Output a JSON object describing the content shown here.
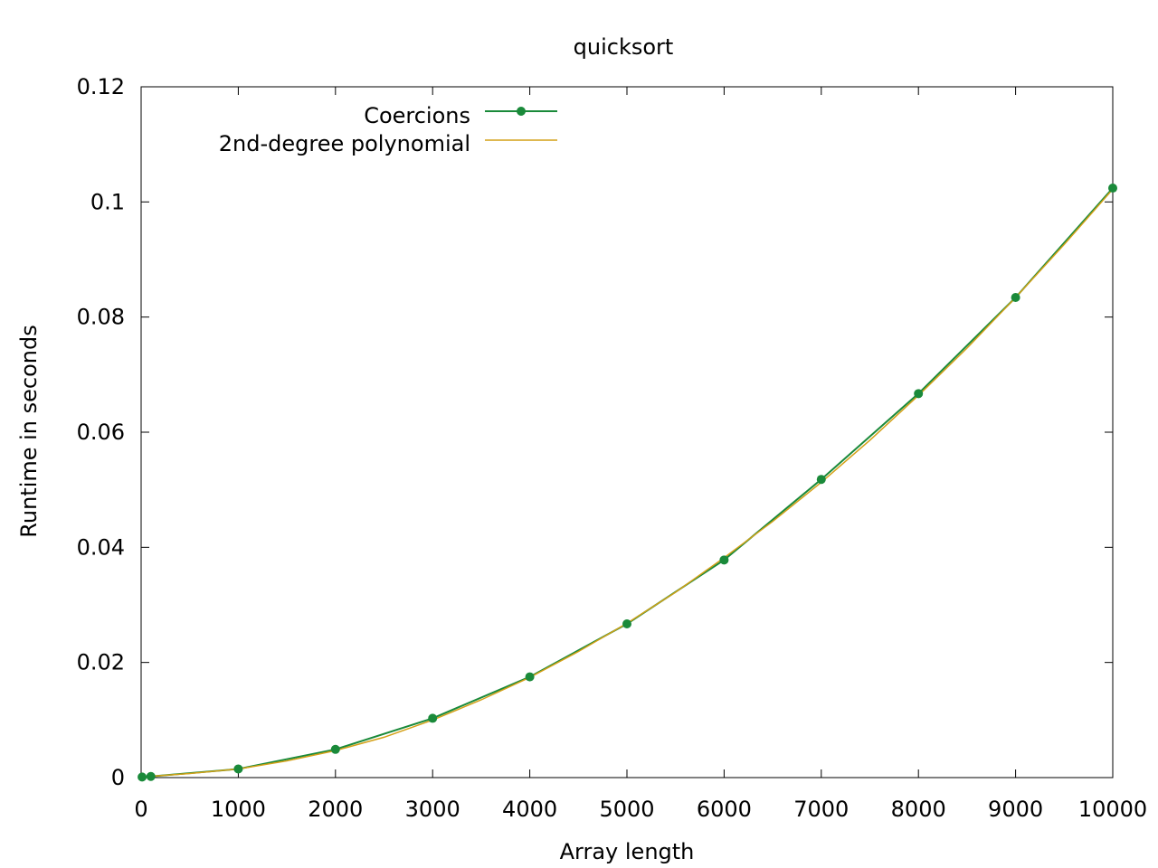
{
  "chart_data": {
    "type": "line",
    "title": "quicksort",
    "xlabel": "Array length",
    "ylabel": "Runtime in seconds",
    "xlim": [
      0,
      10000
    ],
    "ylim": [
      0,
      0.12
    ],
    "xticks": [
      0,
      1000,
      2000,
      3000,
      4000,
      5000,
      6000,
      7000,
      8000,
      9000,
      10000
    ],
    "yticks": [
      0,
      0.02,
      0.04,
      0.06,
      0.08,
      0.1,
      0.12
    ],
    "xtick_labels": [
      "0",
      "1000",
      "2000",
      "3000",
      "4000",
      "5000",
      "6000",
      "7000",
      "8000",
      "9000",
      "10000"
    ],
    "ytick_labels": [
      "0",
      "0.02",
      "0.04",
      "0.06",
      "0.08",
      "0.1",
      "0.12"
    ],
    "grid": false,
    "legend_position": "top-left",
    "series": [
      {
        "name": "Coercions",
        "color": "#1a8a3a",
        "markers": true,
        "x": [
          10,
          100,
          1000,
          2000,
          3000,
          4000,
          5000,
          6000,
          7000,
          8000,
          9000,
          10000
        ],
        "y": [
          0.0001,
          0.0002,
          0.0015,
          0.0049,
          0.0103,
          0.0175,
          0.0267,
          0.0378,
          0.0518,
          0.0667,
          0.0834,
          0.1024
        ]
      },
      {
        "name": "2nd-degree polynomial",
        "color": "#d4a017",
        "markers": false,
        "x": [
          0,
          500,
          1000,
          1500,
          2000,
          2500,
          3000,
          3500,
          4000,
          4500,
          5000,
          5500,
          6000,
          6500,
          7000,
          7500,
          8000,
          8500,
          9000,
          9500,
          10000
        ],
        "y": [
          0.0001,
          0.0007,
          0.0015,
          0.0029,
          0.0047,
          0.007,
          0.01,
          0.0135,
          0.0174,
          0.0219,
          0.0268,
          0.0322,
          0.0382,
          0.0445,
          0.0513,
          0.0586,
          0.0664,
          0.0746,
          0.0834,
          0.0926,
          0.1022
        ]
      }
    ]
  }
}
